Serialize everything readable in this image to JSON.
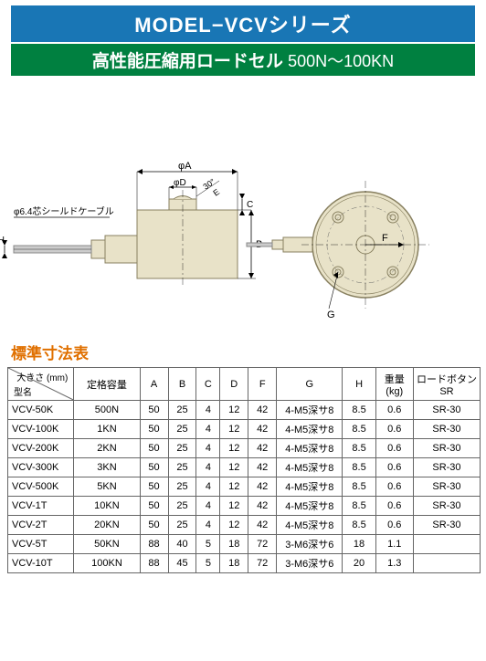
{
  "header": {
    "title": "MODEL−VCVシリーズ",
    "subtitle_main": "高性能圧縮用ロードセル",
    "subtitle_sub": "500N〜100KN"
  },
  "diagram": {
    "cable_label": "φ6.4芯シールドケーブル",
    "stroke": "#000000",
    "body_fill": "#e8e2c8",
    "body_stroke": "#888060",
    "labels": {
      "phiA": "φA",
      "phiD": "φD",
      "E": "E",
      "C": "C",
      "B": "B",
      "H": "H",
      "F": "F",
      "G": "G",
      "threeZero": "30°"
    }
  },
  "section_title": "標準寸法表",
  "table": {
    "diag_top": "大きさ (mm)",
    "diag_bottom": "型名",
    "columns": [
      "定格容量",
      "A",
      "B",
      "C",
      "D",
      "F",
      "G",
      "H",
      "重量\n(kg)",
      "ロードボタン\nSR"
    ],
    "col_widths": [
      "14%",
      "14%",
      "6%",
      "6%",
      "5%",
      "6%",
      "6%",
      "14%",
      "7%",
      "8%",
      "14%"
    ],
    "rows": [
      [
        "VCV-50K",
        "500N",
        "50",
        "25",
        "4",
        "12",
        "42",
        "4-M5深サ8",
        "8.5",
        "0.6",
        "SR-30"
      ],
      [
        "VCV-100K",
        "1KN",
        "50",
        "25",
        "4",
        "12",
        "42",
        "4-M5深サ8",
        "8.5",
        "0.6",
        "SR-30"
      ],
      [
        "VCV-200K",
        "2KN",
        "50",
        "25",
        "4",
        "12",
        "42",
        "4-M5深サ8",
        "8.5",
        "0.6",
        "SR-30"
      ],
      [
        "VCV-300K",
        "3KN",
        "50",
        "25",
        "4",
        "12",
        "42",
        "4-M5深サ8",
        "8.5",
        "0.6",
        "SR-30"
      ],
      [
        "VCV-500K",
        "5KN",
        "50",
        "25",
        "4",
        "12",
        "42",
        "4-M5深サ8",
        "8.5",
        "0.6",
        "SR-30"
      ],
      [
        "VCV-1T",
        "10KN",
        "50",
        "25",
        "4",
        "12",
        "42",
        "4-M5深サ8",
        "8.5",
        "0.6",
        "SR-30"
      ],
      [
        "VCV-2T",
        "20KN",
        "50",
        "25",
        "4",
        "12",
        "42",
        "4-M5深サ8",
        "8.5",
        "0.6",
        "SR-30"
      ],
      [
        "VCV-5T",
        "50KN",
        "88",
        "40",
        "5",
        "18",
        "72",
        "3-M6深サ6",
        "18",
        "1.1",
        ""
      ],
      [
        "VCV-10T",
        "100KN",
        "88",
        "45",
        "5",
        "18",
        "72",
        "3-M6深サ6",
        "20",
        "1.3",
        ""
      ]
    ]
  }
}
